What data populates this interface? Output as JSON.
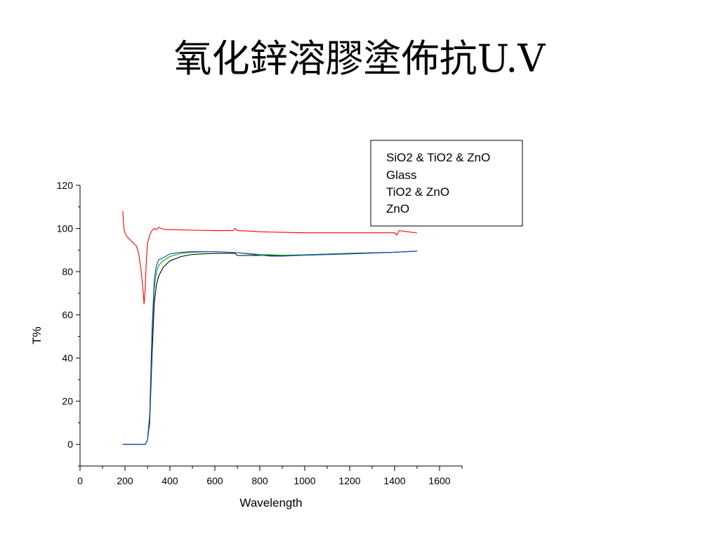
{
  "slide": {
    "title": "氧化鋅溶膠塗佈抗U.V"
  },
  "chart_data": {
    "type": "line",
    "title": "",
    "xlabel": "Wavelength",
    "ylabel": "T%",
    "xlim": [
      0,
      1700
    ],
    "ylim": [
      -10,
      120
    ],
    "xticks": [
      0,
      200,
      400,
      600,
      800,
      1000,
      1200,
      1400,
      1600
    ],
    "yticks": [
      0,
      20,
      40,
      60,
      80,
      100,
      120
    ],
    "grid": false,
    "legend_position": "top-right",
    "legend": [
      "SiO2 & TiO2 & ZnO",
      "Glass",
      "TiO2 & ZnO",
      "ZnO"
    ],
    "series": [
      {
        "name": "SiO2 & TiO2 & ZnO",
        "color": "#000000",
        "x": [
          190,
          250,
          290,
          300,
          310,
          320,
          330,
          340,
          350,
          370,
          400,
          450,
          500,
          600,
          690,
          700,
          750,
          800,
          900,
          1000,
          1200,
          1400,
          1500
        ],
        "y": [
          0,
          0,
          0,
          2,
          10,
          40,
          65,
          74,
          78,
          82,
          85,
          87,
          88,
          88.5,
          88.5,
          87.5,
          87.5,
          87.5,
          87.5,
          87.8,
          88.5,
          89,
          89.5
        ]
      },
      {
        "name": "Glass",
        "color": "#ff0000",
        "x": [
          190,
          195,
          200,
          210,
          220,
          230,
          240,
          250,
          260,
          270,
          280,
          285,
          290,
          295,
          300,
          310,
          320,
          330,
          340,
          350,
          360,
          380,
          400,
          500,
          600,
          680,
          690,
          700,
          750,
          800,
          900,
          1000,
          1200,
          1400,
          1410,
          1420,
          1500
        ],
        "y": [
          108,
          100,
          98,
          96,
          95,
          94,
          93,
          92,
          89,
          82,
          72,
          65,
          72,
          85,
          93,
          97,
          99,
          100,
          99.5,
          100.5,
          100,
          99.5,
          99.5,
          99.2,
          99.0,
          99.0,
          100,
          99,
          98.8,
          98.5,
          98.2,
          98.0,
          98.0,
          98.0,
          97,
          99,
          97.9
        ]
      },
      {
        "name": "TiO2 & ZnO",
        "color": "#00aa00",
        "x": [
          190,
          250,
          290,
          300,
          310,
          320,
          330,
          340,
          350,
          370,
          400,
          450,
          500,
          600,
          700,
          800,
          900,
          1000,
          1200,
          1400,
          1500
        ],
        "y": [
          0,
          0,
          0,
          2,
          12,
          48,
          72,
          80,
          83,
          85,
          87,
          88.5,
          89,
          89.3,
          88.8,
          88,
          87.6,
          87.8,
          88.4,
          89,
          89.5
        ]
      },
      {
        "name": "ZnO",
        "color": "#1a3fd0",
        "x": [
          190,
          250,
          290,
          300,
          310,
          320,
          330,
          340,
          350,
          370,
          400,
          450,
          500,
          600,
          700,
          800,
          850,
          900,
          1000,
          1200,
          1400,
          1500
        ],
        "y": [
          0,
          0,
          0,
          2,
          14,
          52,
          76,
          83,
          85.5,
          86.5,
          88.2,
          89,
          89.3,
          89.3,
          88.8,
          87.6,
          87.2,
          87.2,
          87.6,
          88.2,
          89,
          89.5
        ]
      }
    ]
  }
}
